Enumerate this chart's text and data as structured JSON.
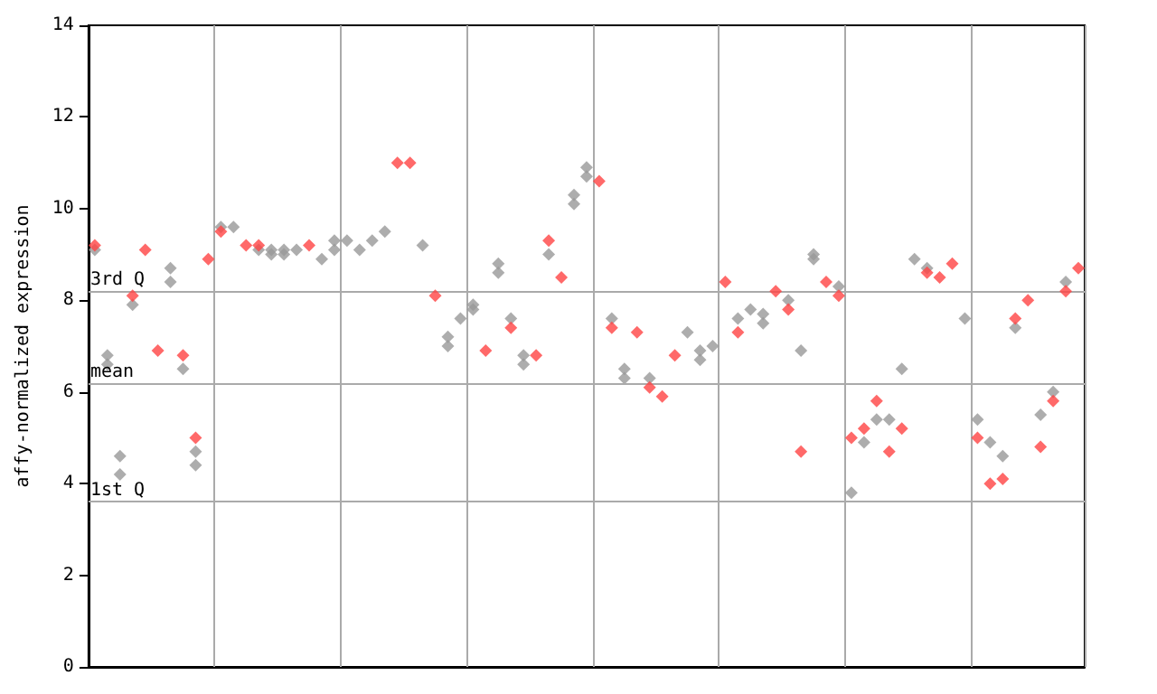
{
  "chart_data": {
    "type": "scatter",
    "ylabel": "affy-normalized expression",
    "categories": [
      null,
      null,
      null,
      null,
      null,
      null,
      null,
      null,
      null,
      null,
      null,
      null,
      null,
      null,
      null,
      null,
      null,
      null,
      null,
      null,
      null,
      null,
      null,
      null,
      null,
      null,
      null,
      null,
      null,
      null,
      null,
      null,
      null,
      null,
      null,
      null,
      null,
      null,
      null,
      null,
      null,
      null,
      null,
      null,
      null,
      null,
      null,
      null,
      null,
      null,
      null,
      null,
      null,
      null,
      null,
      null,
      null,
      null,
      null,
      null,
      null,
      null,
      null,
      null,
      null,
      null,
      null,
      null,
      null,
      null,
      null,
      null,
      null,
      null,
      null,
      null,
      null,
      null,
      null
    ],
    "ylim": [
      0,
      14
    ],
    "yticks": [
      0,
      2,
      4,
      6,
      8,
      10,
      12,
      14
    ],
    "grid": "x",
    "marker": "diamond",
    "series": [
      {
        "color": "#999999",
        "values": [
          9.1,
          6.8,
          4.6,
          7.9,
          null,
          null,
          8.7,
          6.5,
          4.7,
          null,
          9.6,
          9.6,
          null,
          9.1,
          9.1,
          9.0,
          9.1,
          null,
          8.9,
          9.3,
          9.3,
          9.1,
          9.3,
          9.5,
          null,
          null,
          9.2,
          null,
          7.0,
          7.6,
          7.9,
          null,
          8.6,
          7.6,
          6.6,
          null,
          9.0,
          null,
          10.1,
          10.9,
          null,
          7.6,
          6.3,
          null,
          6.3,
          null,
          null,
          7.3,
          6.7,
          7.0,
          null,
          7.6,
          7.8,
          7.5,
          null,
          8.0,
          6.9,
          9.0,
          null,
          8.3,
          3.8,
          4.9,
          5.4,
          5.4,
          6.5,
          8.9,
          8.7,
          null,
          null,
          7.6,
          5.4,
          4.9,
          4.6,
          7.4,
          null,
          5.5,
          6.0,
          8.4,
          null
        ]
      },
      {
        "color": "#999999",
        "values": [
          null,
          6.6,
          4.2,
          null,
          null,
          null,
          8.4,
          null,
          4.4,
          null,
          null,
          null,
          null,
          null,
          9.0,
          9.1,
          null,
          null,
          null,
          9.1,
          null,
          null,
          null,
          null,
          null,
          null,
          null,
          null,
          7.2,
          null,
          7.8,
          null,
          8.8,
          null,
          6.8,
          null,
          null,
          null,
          10.3,
          10.7,
          null,
          null,
          6.5,
          null,
          null,
          null,
          null,
          null,
          6.9,
          null,
          null,
          null,
          null,
          7.7,
          null,
          null,
          null,
          8.9,
          null,
          null,
          null,
          null,
          null,
          null,
          null,
          null,
          null,
          null,
          null,
          null,
          null,
          null,
          null,
          null,
          null,
          null,
          null,
          null,
          null
        ]
      },
      {
        "color": "#ff4444",
        "values": [
          9.2,
          null,
          null,
          8.1,
          9.1,
          6.9,
          null,
          6.8,
          5.0,
          8.9,
          9.5,
          null,
          9.2,
          9.2,
          null,
          null,
          null,
          9.2,
          null,
          null,
          null,
          null,
          null,
          null,
          11.0,
          11.0,
          null,
          8.1,
          null,
          null,
          null,
          6.9,
          null,
          7.4,
          null,
          6.8,
          9.3,
          8.5,
          null,
          null,
          10.6,
          7.4,
          null,
          7.3,
          6.1,
          5.9,
          6.8,
          null,
          null,
          null,
          8.4,
          7.3,
          null,
          null,
          8.2,
          7.8,
          4.7,
          null,
          8.4,
          8.1,
          5.0,
          5.2,
          5.8,
          4.7,
          5.2,
          null,
          8.6,
          8.5,
          8.8,
          null,
          5.0,
          4.0,
          4.1,
          7.6,
          8.0,
          4.8,
          5.8,
          8.2,
          8.7
        ]
      }
    ],
    "ref_lines": [
      {
        "axis": "y",
        "value": 8.2,
        "label": "3rd Q",
        "color": "#aaaaaa"
      },
      {
        "axis": "y",
        "value": 6.2,
        "label": "mean",
        "color": "#aaaaaa"
      },
      {
        "axis": "y",
        "value": 3.6,
        "label": "1st Q",
        "color": "#aaaaaa"
      }
    ]
  }
}
